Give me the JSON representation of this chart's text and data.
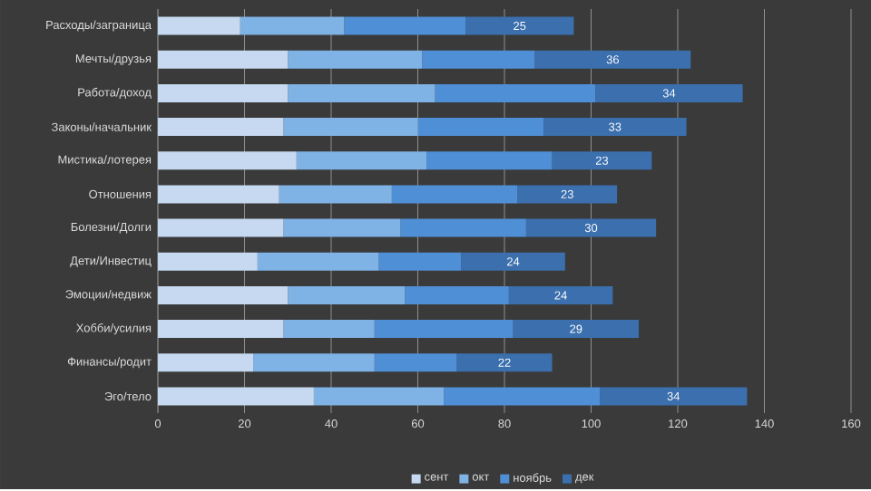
{
  "chart_data": {
    "type": "bar",
    "orientation": "horizontal",
    "stacked": true,
    "categories": [
      "Расходы/заграница",
      "Мечты/друзья",
      "Работа/доход",
      "Законы/начальник",
      "Мистика/лотерея",
      "Отношения",
      "Болезни/Долги",
      "Дети/Инвестиц",
      "Эмоции/недвиж",
      "Хобби/усилия",
      "Финансы/родит",
      "Эго/тело"
    ],
    "series": [
      {
        "name": "сент",
        "color": "#c6d9f0",
        "values": [
          19,
          30,
          30,
          29,
          32,
          28,
          29,
          23,
          30,
          29,
          22,
          36
        ]
      },
      {
        "name": "окт",
        "color": "#7fb2e5",
        "values": [
          24,
          31,
          34,
          31,
          30,
          26,
          27,
          28,
          27,
          21,
          28,
          30
        ]
      },
      {
        "name": "ноябрь",
        "color": "#4f8fd6",
        "values": [
          28,
          26,
          37,
          29,
          29,
          29,
          29,
          19,
          24,
          32,
          19,
          36
        ]
      },
      {
        "name": "дек",
        "color": "#3b6fae",
        "values": [
          25,
          36,
          34,
          33,
          23,
          23,
          30,
          24,
          24,
          29,
          22,
          34
        ],
        "value_labels": [
          "25",
          "36",
          "34",
          "33",
          "23",
          "23",
          "30",
          "24",
          "24",
          "29",
          "22",
          "34"
        ]
      }
    ],
    "xlim": [
      0,
      160
    ],
    "xticks": [
      0,
      20,
      40,
      60,
      80,
      100,
      120,
      140,
      160
    ],
    "grid": "x",
    "legend": "bottom"
  }
}
